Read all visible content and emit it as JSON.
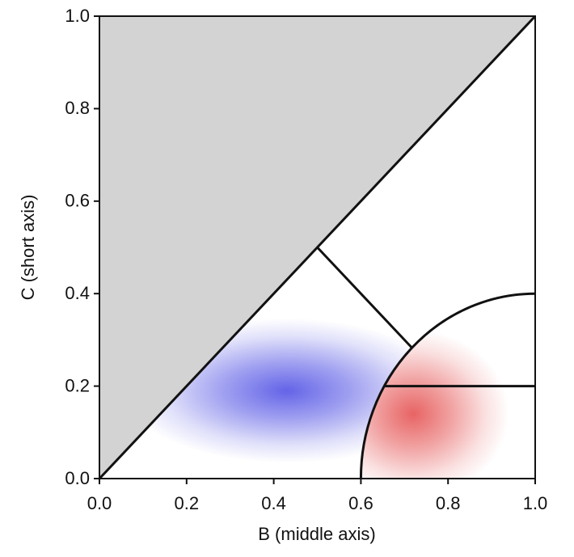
{
  "chart_data": {
    "type": "region-scatter",
    "xlabel": "B (middle axis)",
    "ylabel": "C (short axis)",
    "xlim": [
      0,
      1
    ],
    "ylim": [
      0,
      1
    ],
    "xticks": [
      {
        "value": 0,
        "label": "0.0"
      },
      0.2,
      0.4,
      0.6,
      0.8,
      {
        "value": 1,
        "label": "1.0"
      }
    ],
    "yticks": [
      {
        "value": 0,
        "label": "0.0"
      },
      0.2,
      0.4,
      0.6,
      0.8,
      {
        "value": 1,
        "label": "1.0"
      }
    ],
    "excluded_color": "#d3d3d3",
    "clouds": [
      {
        "color": "#3030e0",
        "center": [
          0.43,
          0.19
        ],
        "spread": [
          0.17,
          0.06
        ],
        "region": "outside"
      },
      {
        "color": "#e03030",
        "center": [
          0.72,
          0.14
        ],
        "spread": [
          0.1,
          0.07
        ],
        "region": "inside"
      }
    ],
    "arc": {
      "center": [
        1,
        0
      ],
      "radius": 0.4
    },
    "lines": [
      [
        0,
        0,
        1,
        1
      ],
      [
        0.5,
        0.5,
        0.717,
        0.283
      ],
      [
        0.654,
        0.2,
        1,
        0.2
      ]
    ]
  }
}
